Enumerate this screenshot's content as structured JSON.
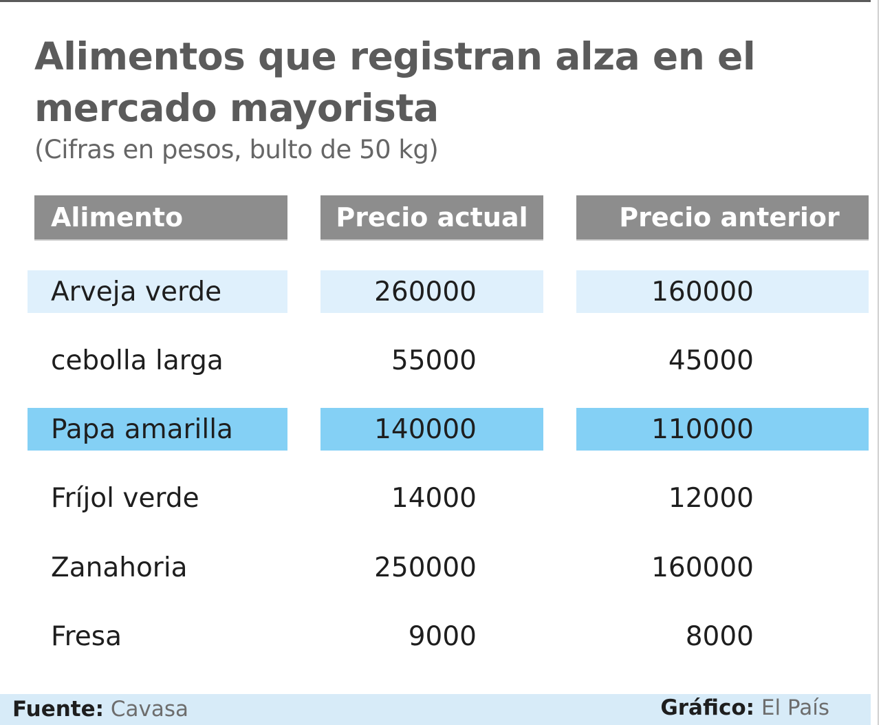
{
  "title": "Alimentos que registran alza en el mercado mayorista",
  "subtitle": "(Cifras en pesos, bulto de 50 kg)",
  "headers": [
    "Alimento",
    "Precio actual",
    "Precio anterior"
  ],
  "rows": [
    {
      "alimento": "Arveja verde",
      "actual": "260000",
      "anterior": "160000"
    },
    {
      "alimento": "cebolla larga",
      "actual": "55000",
      "anterior": "45000"
    },
    {
      "alimento": "Papa amarilla",
      "actual": "140000",
      "anterior": "110000"
    },
    {
      "alimento": "Fríjol verde",
      "actual": "14000",
      "anterior": "12000"
    },
    {
      "alimento": "Zanahoria",
      "actual": "250000",
      "anterior": "160000"
    },
    {
      "alimento": "Fresa",
      "actual": "9000",
      "anterior": "8000"
    }
  ],
  "footer": {
    "source_label": "Fuente:",
    "source_value": "Cavasa",
    "graphic_label": "Gráfico:",
    "graphic_value": "El País"
  },
  "colors": {
    "header_bg": "#8d8d8d",
    "row_light": "#dff0fc",
    "row_highlight": "#84d0f5",
    "title": "#5b5b5b"
  },
  "chart_data": {
    "type": "table",
    "title": "Alimentos que registran alza en el mercado mayorista",
    "subtitle": "(Cifras en pesos, bulto de 50 kg)",
    "columns": [
      "Alimento",
      "Precio actual",
      "Precio anterior"
    ],
    "rows": [
      [
        "Arveja verde",
        260000,
        160000
      ],
      [
        "cebolla larga",
        55000,
        45000
      ],
      [
        "Papa amarilla",
        140000,
        110000
      ],
      [
        "Fríjol verde",
        14000,
        12000
      ],
      [
        "Zanahoria",
        250000,
        160000
      ],
      [
        "Fresa",
        9000,
        8000
      ]
    ]
  }
}
